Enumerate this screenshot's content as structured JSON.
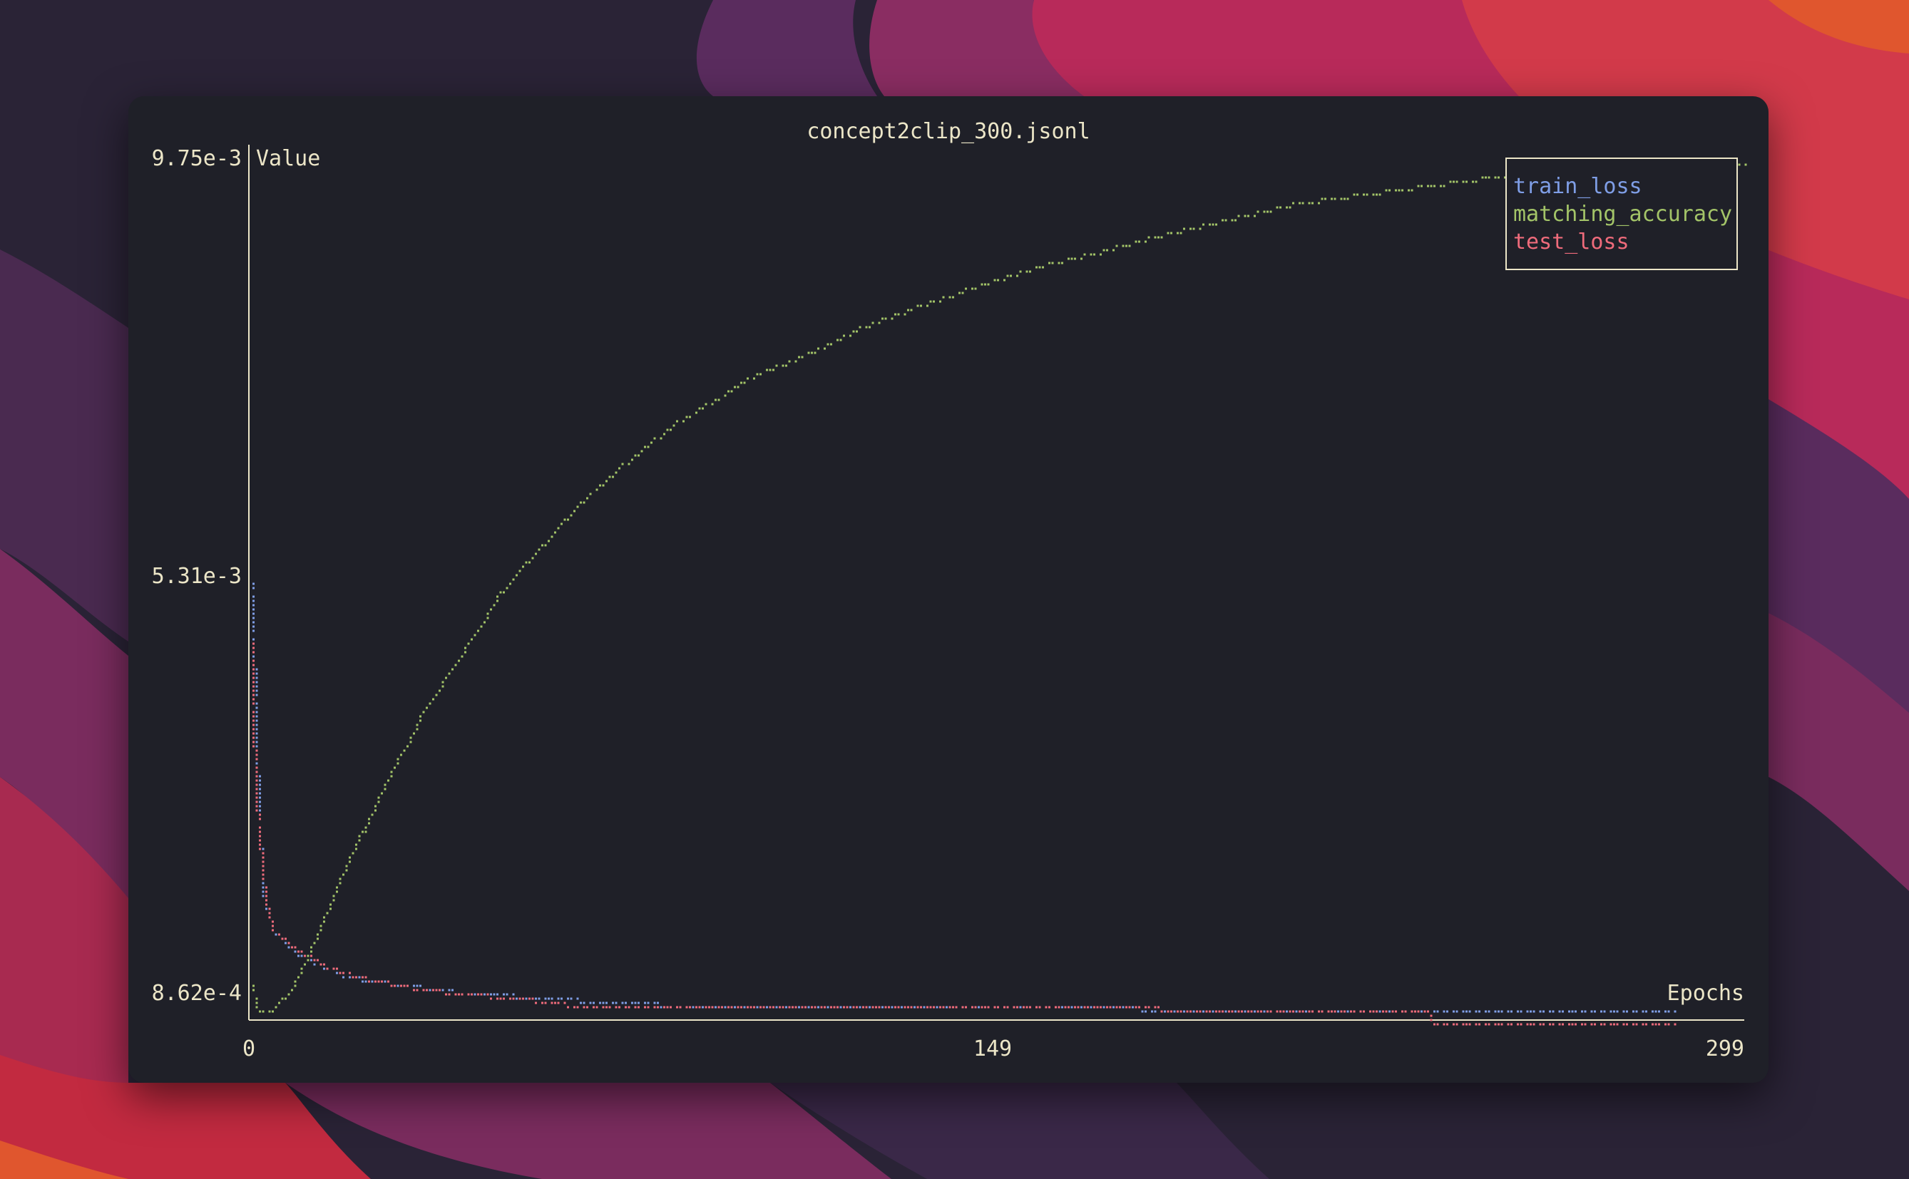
{
  "window": {
    "background": "#1f2028"
  },
  "colors": {
    "axis": "#ece6c8",
    "train_loss": "#7f9ee6",
    "matching_accuracy": "#a3c468",
    "test_loss": "#ef6b7b"
  },
  "chart_data": {
    "type": "line",
    "style": "braille-dot terminal plot",
    "title": "concept2clip_300.jsonl",
    "xlabel": "Epochs",
    "ylabel": "Value",
    "xlim": [
      0,
      299
    ],
    "ylim": [
      0.000862,
      0.00975
    ],
    "x_ticks": [
      "0",
      "149",
      "299"
    ],
    "y_ticks": [
      "9.75e-3",
      "5.31e-3",
      "8.62e-4"
    ],
    "legend": {
      "position": "top-right",
      "bordered": true
    },
    "series": [
      {
        "name": "train_loss",
        "color": "#7f9ee6",
        "points": [
          [
            1,
            0.00531
          ],
          [
            1,
            0.00486
          ],
          [
            2,
            0.00319
          ],
          [
            3,
            0.00207
          ],
          [
            5,
            0.00171
          ],
          [
            10,
            0.00145
          ],
          [
            20,
            0.00121
          ],
          [
            40,
            0.00107
          ],
          [
            60,
            0.00099
          ],
          [
            80,
            0.000935
          ],
          [
            90,
            0.00091
          ],
          [
            110,
            0.000895
          ],
          [
            149,
            0.00089
          ],
          [
            200,
            0.00088
          ],
          [
            237,
            0.00088
          ],
          [
            238,
            0.000875
          ],
          [
            260,
            0.00087
          ],
          [
            285,
            0.00087
          ]
        ]
      },
      {
        "name": "matching_accuracy",
        "color": "#a3c468",
        "points": [
          [
            1,
            0.00111
          ],
          [
            2,
            0.00088
          ],
          [
            5,
            0.00088
          ],
          [
            8,
            0.00104
          ],
          [
            10,
            0.00123
          ],
          [
            15,
            0.0018
          ],
          [
            20,
            0.00242
          ],
          [
            25,
            0.00297
          ],
          [
            30,
            0.00348
          ],
          [
            35,
            0.00398
          ],
          [
            40,
            0.00437
          ],
          [
            45,
            0.00477
          ],
          [
            50,
            0.00518
          ],
          [
            55,
            0.00549
          ],
          [
            60,
            0.00578
          ],
          [
            65,
            0.00609
          ],
          [
            70,
            0.00633
          ],
          [
            75,
            0.00656
          ],
          [
            80,
            0.00676
          ],
          [
            85,
            0.00697
          ],
          [
            90,
            0.00714
          ],
          [
            95,
            0.00729
          ],
          [
            100,
            0.00747
          ],
          [
            110,
            0.00767
          ],
          [
            120,
            0.00793
          ],
          [
            130,
            0.00814
          ],
          [
            140,
            0.00832
          ],
          [
            149,
            0.00848
          ],
          [
            160,
            0.00866
          ],
          [
            170,
            0.00878
          ],
          [
            180,
            0.00892
          ],
          [
            190,
            0.00905
          ],
          [
            200,
            0.00917
          ],
          [
            210,
            0.00929
          ],
          [
            220,
            0.00936
          ],
          [
            230,
            0.00943
          ],
          [
            240,
            0.0095
          ],
          [
            250,
            0.00957
          ],
          [
            260,
            0.0096
          ],
          [
            270,
            0.00963
          ],
          [
            280,
            0.00965
          ],
          [
            290,
            0.00967
          ],
          [
            299,
            0.00972
          ]
        ]
      },
      {
        "name": "test_loss",
        "color": "#ef6b7b",
        "points": [
          [
            1,
            0.00469
          ],
          [
            1,
            0.00386
          ],
          [
            2,
            0.0028
          ],
          [
            3,
            0.00227
          ],
          [
            4,
            0.0019
          ],
          [
            5,
            0.0017
          ],
          [
            8,
            0.00158
          ],
          [
            10,
            0.00149
          ],
          [
            13,
            0.0014
          ],
          [
            16,
            0.00133
          ],
          [
            20,
            0.00125
          ],
          [
            25,
            0.00118
          ],
          [
            32,
            0.00111
          ],
          [
            42,
            0.00104
          ],
          [
            55,
            0.00099
          ],
          [
            63,
            0.00093
          ],
          [
            80,
            0.00091
          ],
          [
            105,
            0.000905
          ],
          [
            130,
            0.000895
          ],
          [
            149,
            0.00089
          ],
          [
            180,
            0.000885
          ],
          [
            210,
            0.000875
          ],
          [
            236,
            0.00087
          ],
          [
            237,
            0.00073
          ],
          [
            260,
            0.00073
          ],
          [
            285,
            0.00073
          ]
        ]
      }
    ]
  }
}
